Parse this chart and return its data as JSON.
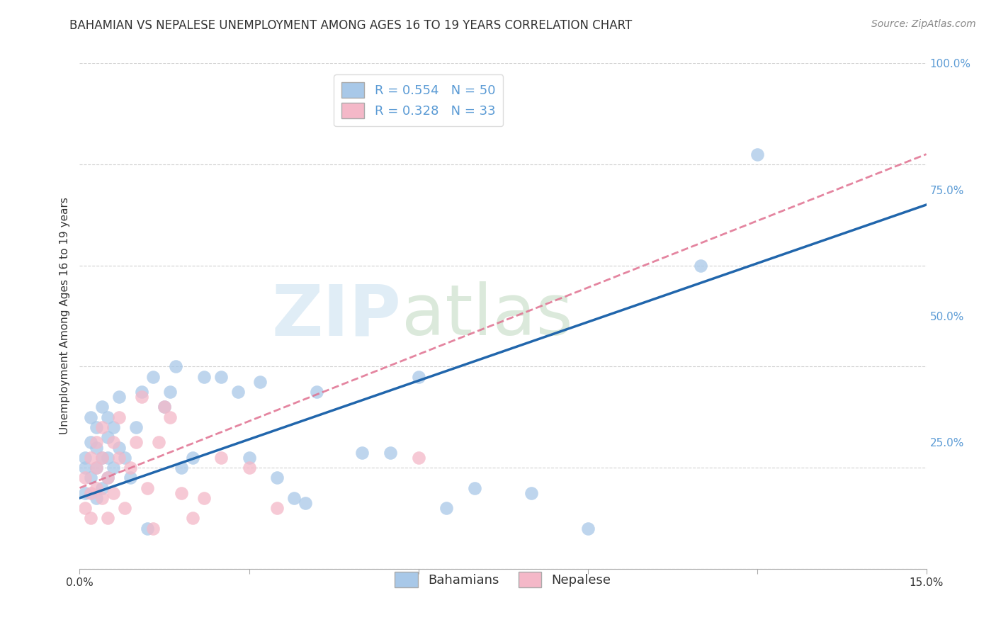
{
  "title": "BAHAMIAN VS NEPALESE UNEMPLOYMENT AMONG AGES 16 TO 19 YEARS CORRELATION CHART",
  "source": "Source: ZipAtlas.com",
  "ylabel": "Unemployment Among Ages 16 to 19 years",
  "xlim": [
    0.0,
    0.15
  ],
  "ylim": [
    0.0,
    1.0
  ],
  "xticks": [
    0.0,
    0.03,
    0.06,
    0.09,
    0.12,
    0.15
  ],
  "xticklabels": [
    "0.0%",
    "",
    "",
    "",
    "",
    "15.0%"
  ],
  "yticks": [
    0.0,
    0.25,
    0.5,
    0.75,
    1.0
  ],
  "yticklabels": [
    "",
    "25.0%",
    "50.0%",
    "75.0%",
    "100.0%"
  ],
  "watermark_zip": "ZIP",
  "watermark_atlas": "atlas",
  "bahamians": {
    "R": 0.554,
    "N": 50,
    "color": "#a8c8e8",
    "line_color": "#2166ac",
    "x": [
      0.001,
      0.001,
      0.001,
      0.002,
      0.002,
      0.002,
      0.003,
      0.003,
      0.003,
      0.003,
      0.004,
      0.004,
      0.004,
      0.005,
      0.005,
      0.005,
      0.005,
      0.006,
      0.006,
      0.007,
      0.007,
      0.008,
      0.009,
      0.01,
      0.011,
      0.012,
      0.013,
      0.015,
      0.016,
      0.017,
      0.018,
      0.02,
      0.022,
      0.025,
      0.028,
      0.03,
      0.032,
      0.035,
      0.038,
      0.04,
      0.042,
      0.05,
      0.055,
      0.06,
      0.065,
      0.07,
      0.08,
      0.09,
      0.11,
      0.12
    ],
    "y": [
      0.15,
      0.2,
      0.22,
      0.18,
      0.25,
      0.3,
      0.14,
      0.2,
      0.24,
      0.28,
      0.16,
      0.22,
      0.32,
      0.18,
      0.22,
      0.26,
      0.3,
      0.2,
      0.28,
      0.24,
      0.34,
      0.22,
      0.18,
      0.28,
      0.35,
      0.08,
      0.38,
      0.32,
      0.35,
      0.4,
      0.2,
      0.22,
      0.38,
      0.38,
      0.35,
      0.22,
      0.37,
      0.18,
      0.14,
      0.13,
      0.35,
      0.23,
      0.23,
      0.38,
      0.12,
      0.16,
      0.15,
      0.08,
      0.6,
      0.82
    ],
    "line_x0": 0.0,
    "line_y0": 0.14,
    "line_x1": 0.15,
    "line_y1": 0.72
  },
  "nepalese": {
    "R": 0.328,
    "N": 33,
    "color": "#f4b8c8",
    "line_color": "#e07090",
    "x": [
      0.001,
      0.001,
      0.002,
      0.002,
      0.002,
      0.003,
      0.003,
      0.003,
      0.004,
      0.004,
      0.004,
      0.005,
      0.005,
      0.006,
      0.006,
      0.007,
      0.007,
      0.008,
      0.009,
      0.01,
      0.011,
      0.012,
      0.013,
      0.014,
      0.015,
      0.016,
      0.018,
      0.02,
      0.022,
      0.025,
      0.03,
      0.035,
      0.06
    ],
    "y": [
      0.12,
      0.18,
      0.15,
      0.22,
      0.1,
      0.2,
      0.25,
      0.16,
      0.22,
      0.28,
      0.14,
      0.18,
      0.1,
      0.25,
      0.15,
      0.22,
      0.3,
      0.12,
      0.2,
      0.25,
      0.34,
      0.16,
      0.08,
      0.25,
      0.32,
      0.3,
      0.15,
      0.1,
      0.14,
      0.22,
      0.2,
      0.12,
      0.22
    ],
    "line_x0": 0.0,
    "line_y0": 0.16,
    "line_x1": 0.15,
    "line_y1": 0.82
  },
  "background_color": "#ffffff",
  "grid_color": "#cccccc",
  "title_fontsize": 12,
  "axis_label_fontsize": 11,
  "tick_fontsize": 11,
  "legend_fontsize": 13,
  "source_fontsize": 10
}
